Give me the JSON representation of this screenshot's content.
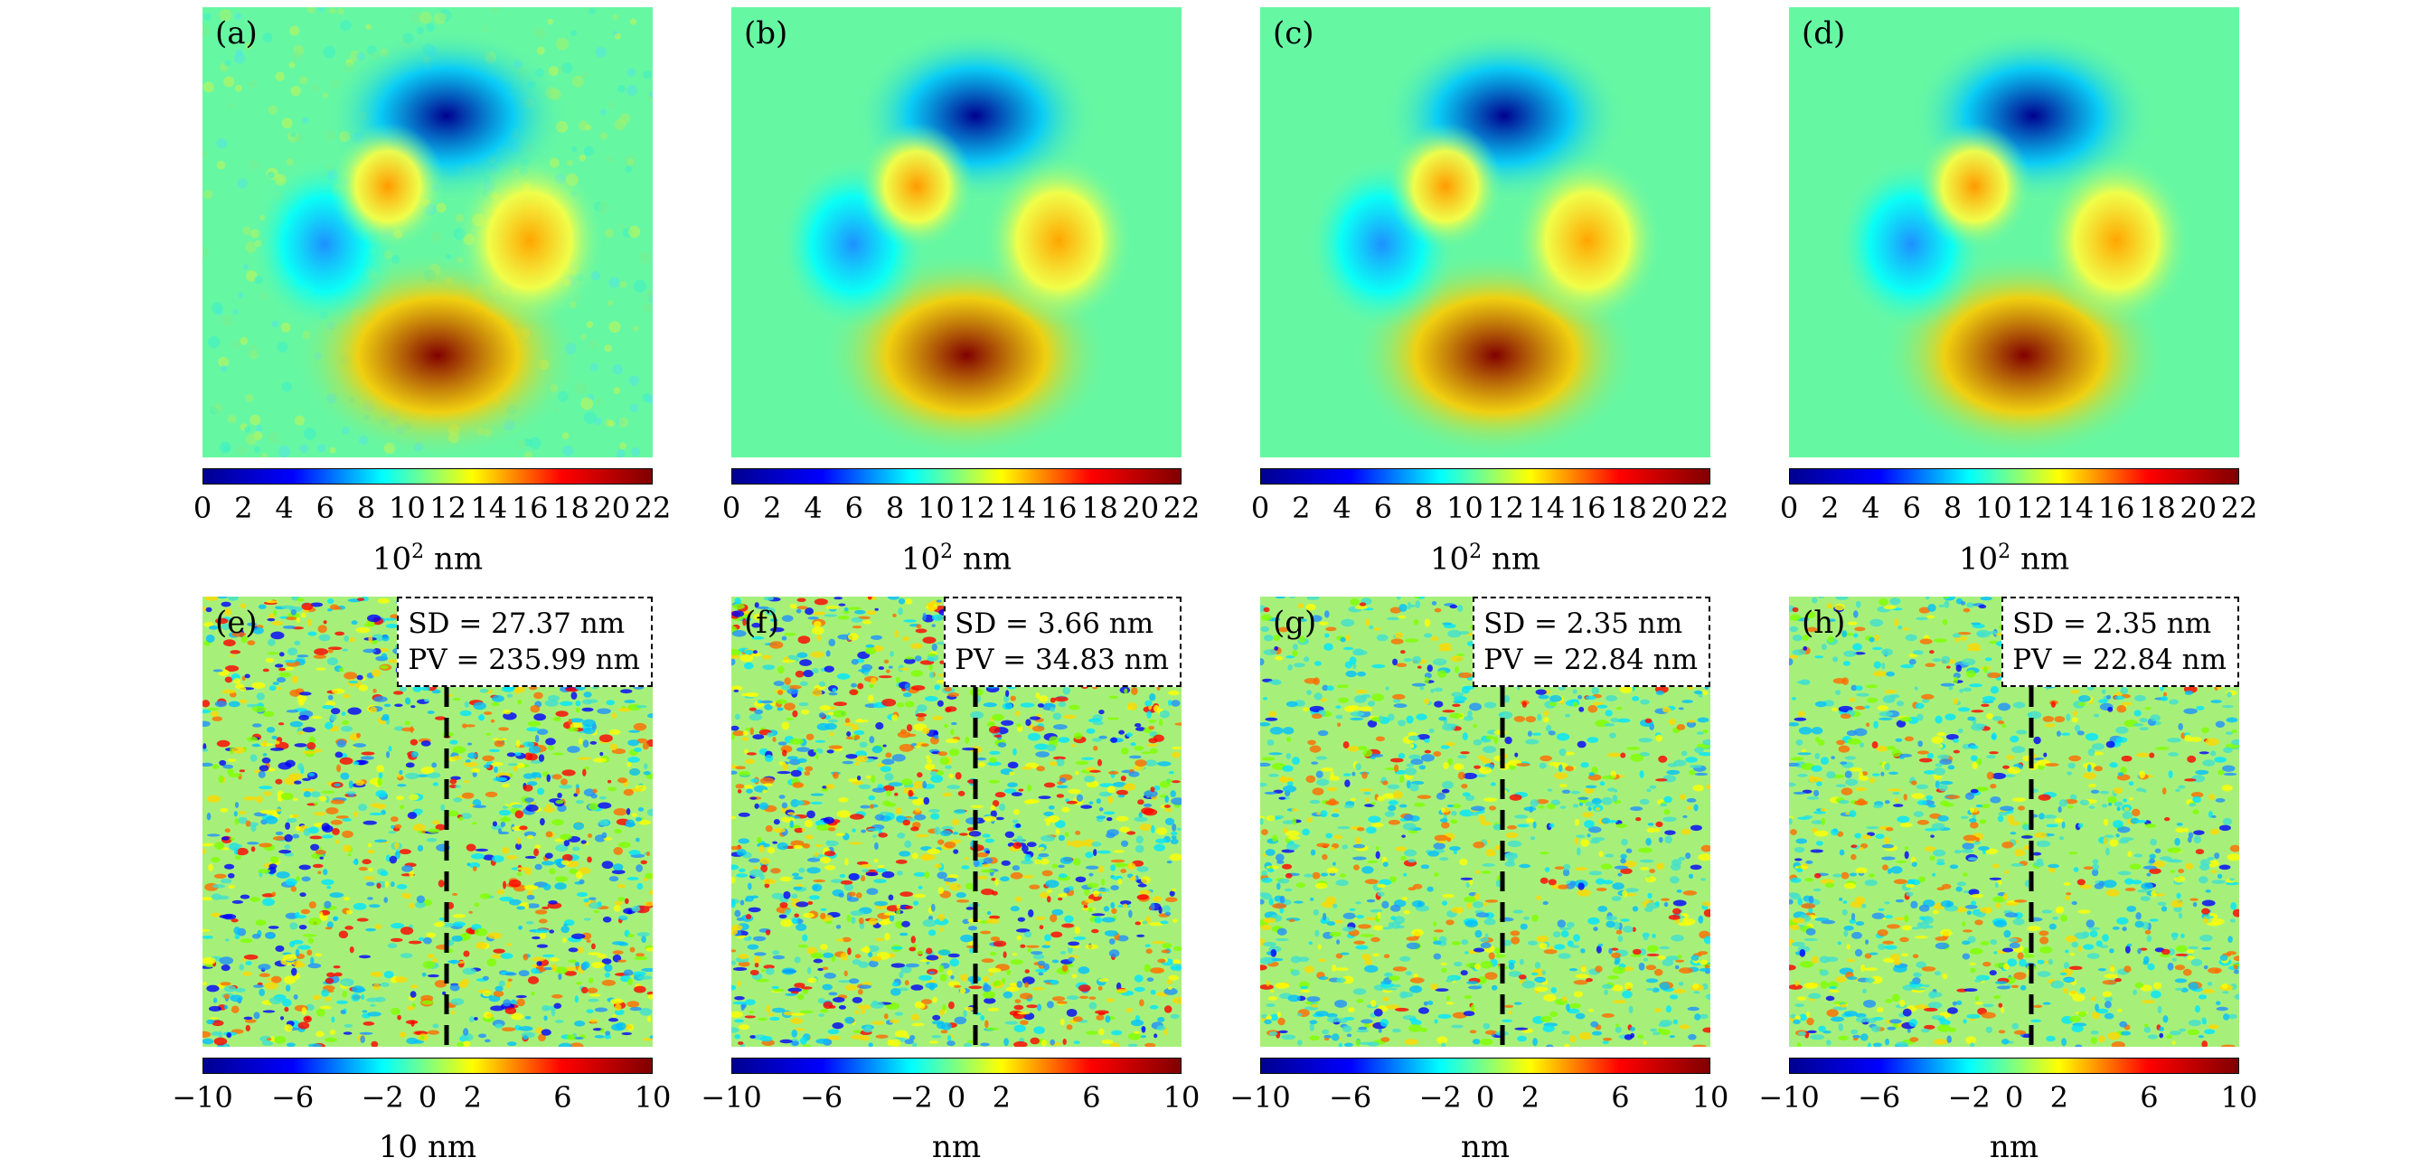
{
  "chart_data": [
    {
      "type": "heatmap",
      "panel": "(a)",
      "colorbar_ticks": [
        "0",
        "2",
        "4",
        "6",
        "8",
        "10",
        "12",
        "14",
        "16",
        "18",
        "20",
        "22"
      ],
      "colorbar_range": [
        0,
        22
      ],
      "colorbar_label_base": "10",
      "colorbar_label_exp": "2",
      "colorbar_label_unit": "nm"
    },
    {
      "type": "heatmap",
      "panel": "(b)",
      "colorbar_ticks": [
        "0",
        "2",
        "4",
        "6",
        "8",
        "10",
        "12",
        "14",
        "16",
        "18",
        "20",
        "22"
      ],
      "colorbar_range": [
        0,
        22
      ],
      "colorbar_label_base": "10",
      "colorbar_label_exp": "2",
      "colorbar_label_unit": "nm"
    },
    {
      "type": "heatmap",
      "panel": "(c)",
      "colorbar_ticks": [
        "0",
        "2",
        "4",
        "6",
        "8",
        "10",
        "12",
        "14",
        "16",
        "18",
        "20",
        "22"
      ],
      "colorbar_range": [
        0,
        22
      ],
      "colorbar_label_base": "10",
      "colorbar_label_exp": "2",
      "colorbar_label_unit": "nm"
    },
    {
      "type": "heatmap",
      "panel": "(d)",
      "colorbar_ticks": [
        "0",
        "2",
        "4",
        "6",
        "8",
        "10",
        "12",
        "14",
        "16",
        "18",
        "20",
        "22"
      ],
      "colorbar_range": [
        0,
        22
      ],
      "colorbar_label_base": "10",
      "colorbar_label_exp": "2",
      "colorbar_label_unit": "nm"
    },
    {
      "type": "heatmap",
      "panel": "(e)",
      "sd": "SD = 27.37 nm",
      "pv": "PV = 235.99 nm",
      "colorbar_ticks": [
        "−10",
        "−6",
        "−2",
        "0",
        "2",
        "6",
        "10"
      ],
      "colorbar_range": [
        -10,
        10
      ],
      "colorbar_label": "10 nm"
    },
    {
      "type": "heatmap",
      "panel": "(f)",
      "sd": "SD = 3.66 nm",
      "pv": "PV = 34.83 nm",
      "colorbar_ticks": [
        "−10",
        "−6",
        "−2",
        "0",
        "2",
        "6",
        "10"
      ],
      "colorbar_range": [
        -10,
        10
      ],
      "colorbar_label": "nm"
    },
    {
      "type": "heatmap",
      "panel": "(g)",
      "sd": "SD = 2.35 nm",
      "pv": "PV = 22.84 nm",
      "colorbar_ticks": [
        "−10",
        "−6",
        "−2",
        "0",
        "2",
        "6",
        "10"
      ],
      "colorbar_range": [
        -10,
        10
      ],
      "colorbar_label": "nm"
    },
    {
      "type": "heatmap",
      "panel": "(h)",
      "sd": "SD = 2.35 nm",
      "pv": "PV = 22.84 nm",
      "colorbar_ticks": [
        "−10",
        "−6",
        "−2",
        "0",
        "2",
        "6",
        "10"
      ],
      "colorbar_range": [
        -10,
        10
      ],
      "colorbar_label": "nm"
    }
  ],
  "colormap": [
    "#00008f",
    "#0000ff",
    "#00ffff",
    "#ffff00",
    "#ff0000",
    "#800000"
  ],
  "background_color": "#66f7a3",
  "profile_line_color": "#000000"
}
